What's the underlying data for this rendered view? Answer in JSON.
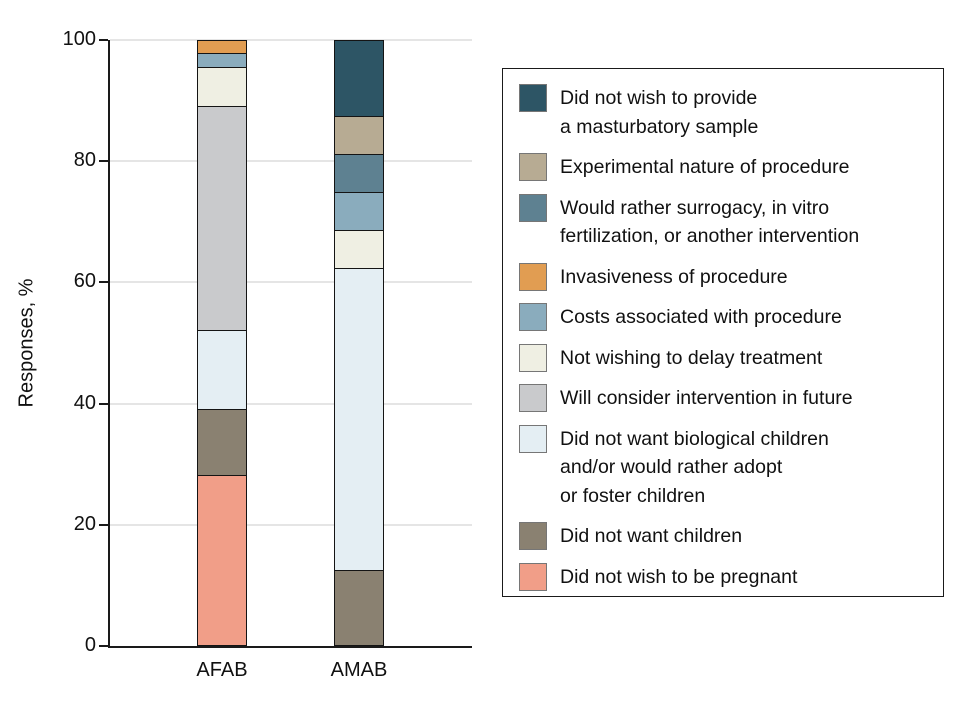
{
  "chart_data": {
    "type": "bar",
    "stacked": true,
    "title": "",
    "xlabel": "",
    "ylabel": "Responses, %",
    "ylim": [
      0,
      100
    ],
    "yticks": [
      0,
      20,
      40,
      60,
      80,
      100
    ],
    "grid": "horizontal",
    "legend_position": "right",
    "categories": [
      "AFAB",
      "AMAB"
    ],
    "series": [
      {
        "label": "Did not wish to provide a masturbatory sample",
        "label_lines": [
          "Did not wish to provide",
          "a masturbatory sample"
        ],
        "color": "#2D5565",
        "values": [
          0,
          12.5
        ]
      },
      {
        "label": "Experimental nature of procedure",
        "label_lines": [
          "Experimental nature of procedure"
        ],
        "color": "#B7AB93",
        "values": [
          0,
          6.3
        ]
      },
      {
        "label": "Would rather surrogacy, in vitro fertilization, or another intervention",
        "label_lines": [
          "Would rather surrogacy, in vitro",
          "fertilization, or another intervention"
        ],
        "color": "#5E8191",
        "values": [
          0,
          6.3
        ]
      },
      {
        "label": "Invasiveness of procedure",
        "label_lines": [
          "Invasiveness of procedure"
        ],
        "color": "#E19D52",
        "values": [
          2.2,
          0
        ]
      },
      {
        "label": "Costs associated with procedure",
        "label_lines": [
          "Costs associated with procedure"
        ],
        "color": "#8AACBD",
        "values": [
          2.2,
          6.3
        ]
      },
      {
        "label": "Not wishing to delay treatment",
        "label_lines": [
          "Not wishing to delay treatment"
        ],
        "color": "#EFEFE3",
        "values": [
          6.5,
          6.3
        ]
      },
      {
        "label": "Will consider intervention in future",
        "label_lines": [
          "Will consider intervention in future"
        ],
        "color": "#C9CACC",
        "values": [
          37.0,
          0
        ]
      },
      {
        "label": "Did not want biological children and/or would rather adopt or foster children",
        "label_lines": [
          "Did not want biological children",
          "and/or would rather adopt",
          "or foster children"
        ],
        "color": "#E4EEF3",
        "values": [
          13.0,
          50.0
        ]
      },
      {
        "label": "Did not want children",
        "label_lines": [
          "Did not want children"
        ],
        "color": "#8A8171",
        "values": [
          10.9,
          12.5
        ]
      },
      {
        "label": "Did not wish to be pregnant",
        "label_lines": [
          "Did not wish to be pregnant"
        ],
        "color": "#F19E88",
        "values": [
          28.3,
          0
        ]
      }
    ]
  },
  "colors": {
    "axis": "#1a1a1a",
    "grid": "#e5e5e5",
    "text": "#111111",
    "background": "#ffffff",
    "segment_border": "#141414",
    "swatch_border": "#767676"
  }
}
